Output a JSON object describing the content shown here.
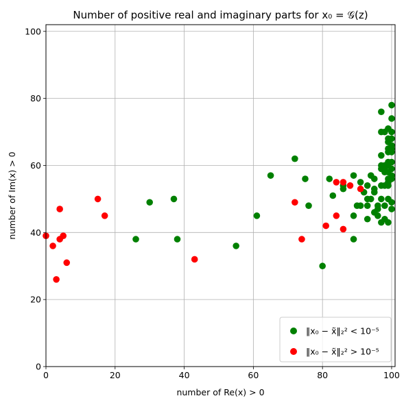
{
  "chart_data": {
    "type": "scatter",
    "title": "Number of positive real and imaginary parts for x₀ = 𝒢(z)",
    "xlabel": "number of Re(x) > 0",
    "ylabel": "number of Im(x) > 0",
    "xlim": [
      0,
      101
    ],
    "ylim": [
      0,
      102
    ],
    "xticks": [
      0,
      20,
      40,
      60,
      80,
      100
    ],
    "yticks": [
      0,
      20,
      40,
      60,
      80,
      100
    ],
    "grid": true,
    "legend_position": "lower-right",
    "series": [
      {
        "name": "‖x₀ − x̃‖₂² < 10⁻⁵",
        "color": "#008000",
        "points": [
          [
            26,
            38
          ],
          [
            30,
            49
          ],
          [
            37,
            50
          ],
          [
            38,
            38
          ],
          [
            55,
            36
          ],
          [
            61,
            45
          ],
          [
            65,
            57
          ],
          [
            72,
            62
          ],
          [
            75,
            56
          ],
          [
            76,
            48
          ],
          [
            80,
            30
          ],
          [
            82,
            56
          ],
          [
            83,
            51
          ],
          [
            86,
            53
          ],
          [
            86,
            54
          ],
          [
            89,
            57
          ],
          [
            89,
            45
          ],
          [
            89,
            38
          ],
          [
            90,
            48
          ],
          [
            91,
            55
          ],
          [
            91,
            48
          ],
          [
            92,
            52
          ],
          [
            93,
            54
          ],
          [
            93,
            50
          ],
          [
            93,
            48
          ],
          [
            93,
            44
          ],
          [
            94,
            57
          ],
          [
            94,
            50
          ],
          [
            95,
            56
          ],
          [
            95,
            53
          ],
          [
            95,
            52
          ],
          [
            95,
            46
          ],
          [
            96,
            48
          ],
          [
            96,
            47
          ],
          [
            96,
            45
          ],
          [
            97,
            76
          ],
          [
            97,
            70
          ],
          [
            97,
            63
          ],
          [
            97,
            60
          ],
          [
            97,
            59
          ],
          [
            97,
            54
          ],
          [
            97,
            50
          ],
          [
            97,
            43
          ],
          [
            98,
            70
          ],
          [
            98,
            60
          ],
          [
            98,
            59
          ],
          [
            98,
            58
          ],
          [
            98,
            54
          ],
          [
            98,
            48
          ],
          [
            98,
            44
          ],
          [
            99,
            71
          ],
          [
            99,
            68
          ],
          [
            99,
            67
          ],
          [
            99,
            65
          ],
          [
            99,
            64
          ],
          [
            99,
            61
          ],
          [
            99,
            60
          ],
          [
            99,
            58
          ],
          [
            99,
            56
          ],
          [
            99,
            55
          ],
          [
            99,
            54
          ],
          [
            99,
            50
          ],
          [
            99,
            43
          ],
          [
            100,
            78
          ],
          [
            100,
            74
          ],
          [
            100,
            70
          ],
          [
            100,
            68
          ],
          [
            100,
            66
          ],
          [
            100,
            65
          ],
          [
            100,
            64
          ],
          [
            100,
            61
          ],
          [
            100,
            59
          ],
          [
            100,
            57
          ],
          [
            100,
            56
          ],
          [
            100,
            49
          ],
          [
            100,
            47
          ]
        ]
      },
      {
        "name": "‖x₀ − x̃‖₂² > 10⁻⁵",
        "color": "#ff0000",
        "points": [
          [
            0,
            39
          ],
          [
            2,
            36
          ],
          [
            3,
            26
          ],
          [
            4,
            38
          ],
          [
            4,
            47
          ],
          [
            5,
            39
          ],
          [
            6,
            31
          ],
          [
            15,
            50
          ],
          [
            17,
            45
          ],
          [
            43,
            32
          ],
          [
            72,
            49
          ],
          [
            74,
            38
          ],
          [
            81,
            42
          ],
          [
            84,
            55
          ],
          [
            84,
            45
          ],
          [
            86,
            55
          ],
          [
            86,
            41
          ],
          [
            88,
            54
          ],
          [
            91,
            53
          ]
        ]
      }
    ]
  }
}
